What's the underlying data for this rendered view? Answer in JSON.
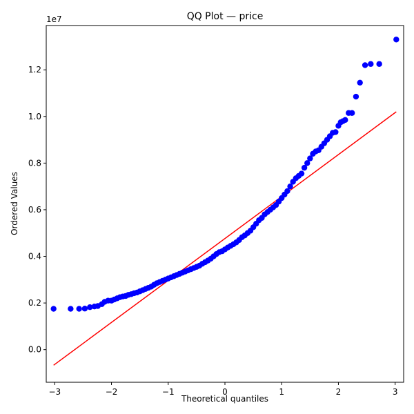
{
  "chart_data": {
    "type": "scatter",
    "title": "QQ Plot — price",
    "xlabel": "Theoretical quantiles",
    "ylabel": "Ordered Values",
    "y_offset_label": "1e7",
    "xlim": [
      -3.15,
      3.15
    ],
    "ylim": [
      -1.4,
      13.9
    ],
    "y_scale_note": "values in units of 1e7 (shown as 0.0 to 1.2)",
    "x_ticks": [
      -3,
      -2,
      -1,
      0,
      1,
      2,
      3
    ],
    "x_tick_labels": [
      "−3",
      "−2",
      "−1",
      "0",
      "1",
      "2",
      "3"
    ],
    "y_ticks": [
      0,
      2,
      4,
      6,
      8,
      10,
      12
    ],
    "y_tick_labels": [
      "0.0",
      "0.2",
      "0.4",
      "0.6",
      "0.8",
      "1.0",
      "1.2"
    ],
    "grid": false,
    "colors": {
      "points": "#0000ff",
      "line": "#ff0000"
    },
    "fit_line": {
      "x": [
        -3.02,
        3.02
      ],
      "y": [
        -0.67,
        10.2
      ]
    },
    "series": [
      {
        "values": [
          [
            -3.02,
            1.75
          ],
          [
            -2.72,
            1.75
          ],
          [
            -2.57,
            1.75
          ],
          [
            -2.47,
            1.76
          ],
          [
            -2.38,
            1.82
          ],
          [
            -2.3,
            1.85
          ],
          [
            -2.24,
            1.87
          ],
          [
            -2.17,
            1.95
          ],
          [
            -2.12,
            2.05
          ],
          [
            -2.06,
            2.1
          ],
          [
            -2.0,
            2.1
          ],
          [
            -1.95,
            2.15
          ],
          [
            -1.9,
            2.2
          ],
          [
            -1.85,
            2.25
          ],
          [
            -1.8,
            2.28
          ],
          [
            -1.75,
            2.3
          ],
          [
            -1.7,
            2.35
          ],
          [
            -1.65,
            2.38
          ],
          [
            -1.6,
            2.42
          ],
          [
            -1.55,
            2.45
          ],
          [
            -1.5,
            2.5
          ],
          [
            -1.45,
            2.55
          ],
          [
            -1.4,
            2.6
          ],
          [
            -1.35,
            2.65
          ],
          [
            -1.3,
            2.7
          ],
          [
            -1.25,
            2.78
          ],
          [
            -1.2,
            2.85
          ],
          [
            -1.15,
            2.9
          ],
          [
            -1.1,
            2.95
          ],
          [
            -1.05,
            3.0
          ],
          [
            -1.0,
            3.05
          ],
          [
            -0.95,
            3.1
          ],
          [
            -0.9,
            3.15
          ],
          [
            -0.85,
            3.2
          ],
          [
            -0.8,
            3.25
          ],
          [
            -0.75,
            3.3
          ],
          [
            -0.7,
            3.35
          ],
          [
            -0.65,
            3.4
          ],
          [
            -0.6,
            3.45
          ],
          [
            -0.55,
            3.5
          ],
          [
            -0.5,
            3.55
          ],
          [
            -0.45,
            3.6
          ],
          [
            -0.4,
            3.68
          ],
          [
            -0.35,
            3.75
          ],
          [
            -0.3,
            3.82
          ],
          [
            -0.25,
            3.9
          ],
          [
            -0.2,
            4.0
          ],
          [
            -0.15,
            4.1
          ],
          [
            -0.1,
            4.18
          ],
          [
            -0.05,
            4.22
          ],
          [
            0.0,
            4.3
          ],
          [
            0.05,
            4.38
          ],
          [
            0.1,
            4.45
          ],
          [
            0.15,
            4.52
          ],
          [
            0.2,
            4.6
          ],
          [
            0.25,
            4.7
          ],
          [
            0.3,
            4.82
          ],
          [
            0.35,
            4.9
          ],
          [
            0.4,
            5.0
          ],
          [
            0.45,
            5.1
          ],
          [
            0.5,
            5.25
          ],
          [
            0.55,
            5.4
          ],
          [
            0.6,
            5.55
          ],
          [
            0.65,
            5.65
          ],
          [
            0.7,
            5.8
          ],
          [
            0.75,
            5.9
          ],
          [
            0.8,
            6.0
          ],
          [
            0.85,
            6.1
          ],
          [
            0.9,
            6.2
          ],
          [
            0.95,
            6.35
          ],
          [
            1.0,
            6.5
          ],
          [
            1.05,
            6.65
          ],
          [
            1.1,
            6.8
          ],
          [
            1.15,
            7.0
          ],
          [
            1.2,
            7.2
          ],
          [
            1.25,
            7.35
          ],
          [
            1.3,
            7.45
          ],
          [
            1.35,
            7.55
          ],
          [
            1.4,
            7.8
          ],
          [
            1.45,
            8.0
          ],
          [
            1.5,
            8.2
          ],
          [
            1.55,
            8.4
          ],
          [
            1.6,
            8.5
          ],
          [
            1.65,
            8.55
          ],
          [
            1.7,
            8.7
          ],
          [
            1.75,
            8.85
          ],
          [
            1.8,
            9.0
          ],
          [
            1.85,
            9.15
          ],
          [
            1.9,
            9.3
          ],
          [
            1.95,
            9.33
          ],
          [
            2.0,
            9.6
          ],
          [
            2.04,
            9.75
          ],
          [
            2.08,
            9.8
          ],
          [
            2.12,
            9.85
          ],
          [
            2.18,
            10.15
          ],
          [
            2.24,
            10.15
          ],
          [
            2.31,
            10.85
          ],
          [
            2.38,
            11.45
          ],
          [
            2.47,
            12.2
          ],
          [
            2.57,
            12.25
          ],
          [
            2.72,
            12.25
          ],
          [
            3.02,
            13.3
          ]
        ]
      }
    ]
  }
}
